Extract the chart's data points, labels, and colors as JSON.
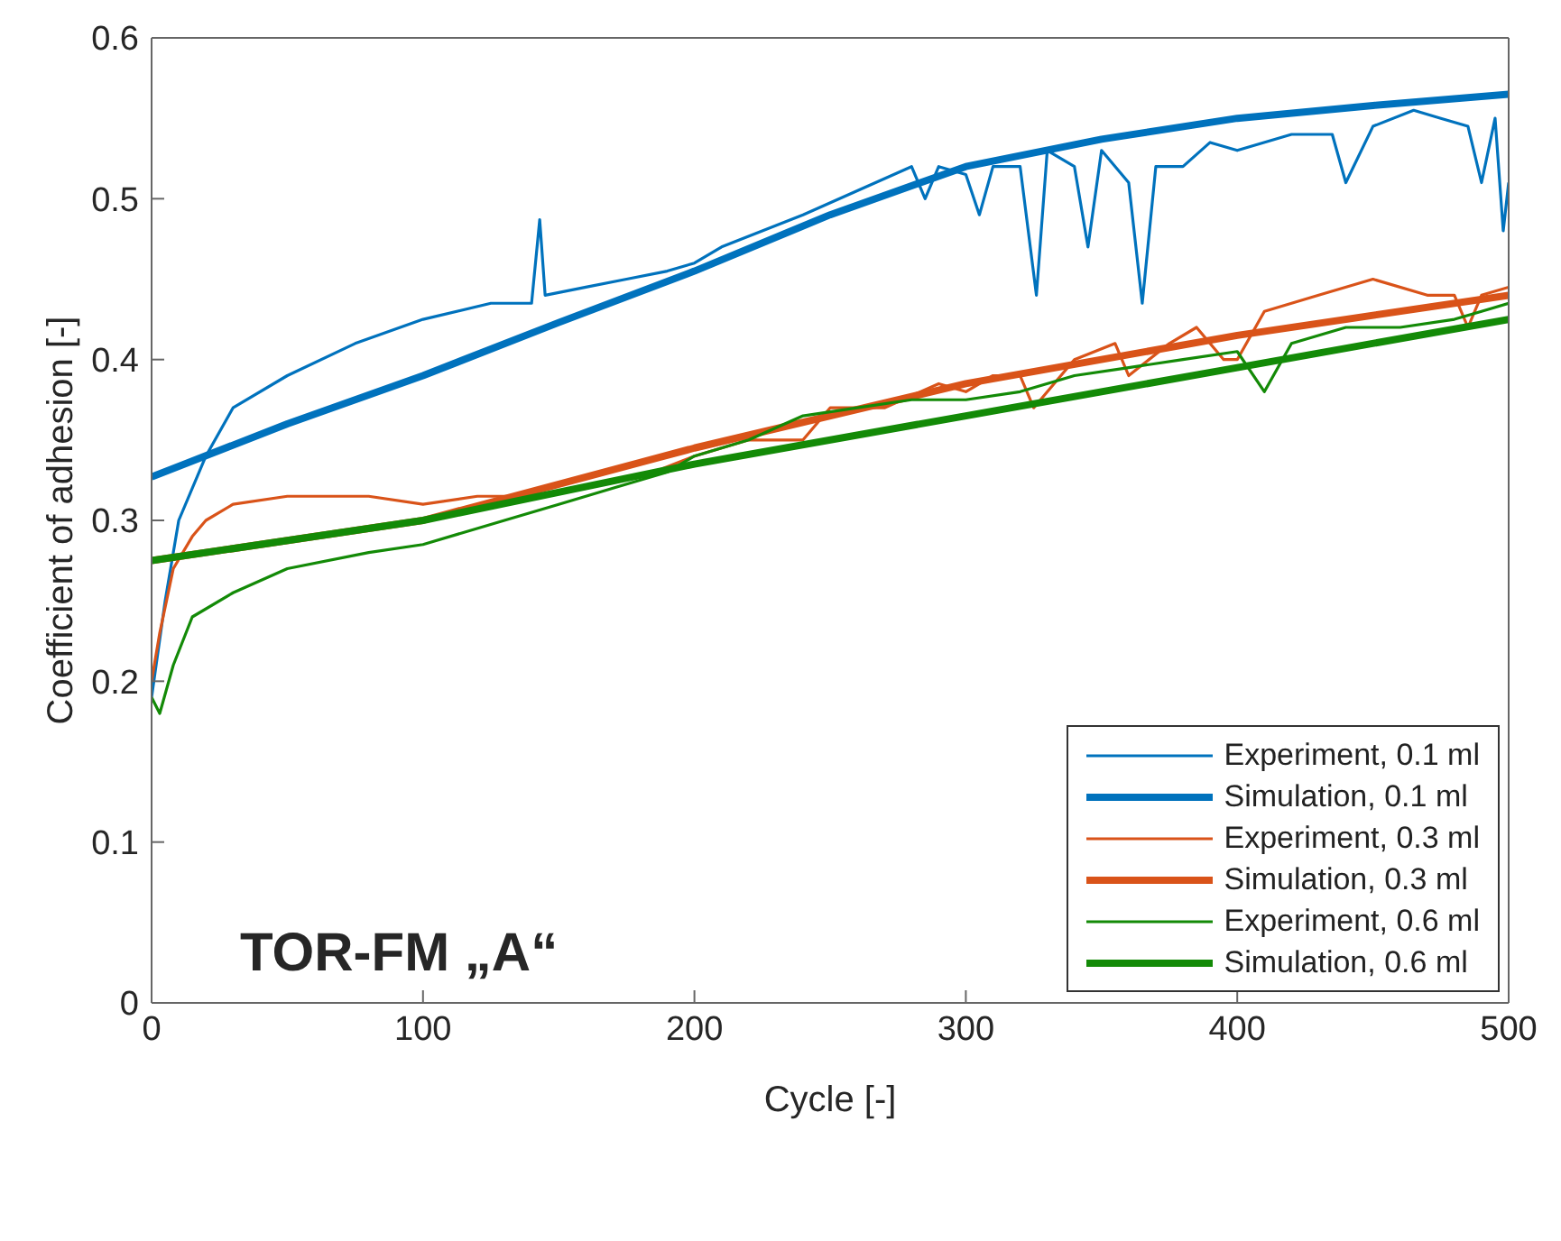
{
  "chart_data": {
    "type": "line",
    "xlabel": "Cycle [-]",
    "ylabel": "Coefficient of adhesion [-]",
    "xlim": [
      0,
      500
    ],
    "xticks": [
      0,
      100,
      200,
      300,
      400,
      500
    ],
    "ylim": [
      0,
      0.6
    ],
    "yticks": [
      0,
      0.1,
      0.2,
      0.3,
      0.4,
      0.5,
      0.6
    ],
    "legend": "bottom right",
    "marker": "none",
    "annotations": [
      "TOR-FM „A“"
    ],
    "series": [
      {
        "name": "Experiment, 0.1 ml",
        "color": "#0072bd",
        "x": [
          0,
          5,
          10,
          20,
          30,
          50,
          75,
          100,
          125,
          140,
          143,
          145,
          160,
          175,
          190,
          200,
          210,
          225,
          240,
          260,
          280,
          285,
          290,
          300,
          305,
          310,
          320,
          326,
          330,
          340,
          345,
          350,
          360,
          365,
          370,
          380,
          390,
          400,
          420,
          435,
          440,
          450,
          465,
          475,
          485,
          490,
          495,
          498,
          500
        ],
        "values": [
          0.19,
          0.25,
          0.3,
          0.34,
          0.37,
          0.39,
          0.41,
          0.425,
          0.435,
          0.435,
          0.487,
          0.44,
          0.445,
          0.45,
          0.455,
          0.46,
          0.47,
          0.48,
          0.49,
          0.505,
          0.52,
          0.5,
          0.52,
          0.515,
          0.49,
          0.52,
          0.52,
          0.44,
          0.53,
          0.52,
          0.47,
          0.53,
          0.51,
          0.435,
          0.52,
          0.52,
          0.535,
          0.53,
          0.54,
          0.54,
          0.51,
          0.545,
          0.555,
          0.55,
          0.545,
          0.51,
          0.55,
          0.48,
          0.51
        ]
      },
      {
        "name": "Simulation, 0.1 ml",
        "color": "#0072bd",
        "x": [
          0,
          50,
          100,
          150,
          200,
          250,
          300,
          350,
          400,
          450,
          500
        ],
        "values": [
          0.327,
          0.36,
          0.39,
          0.423,
          0.455,
          0.49,
          0.52,
          0.537,
          0.55,
          0.558,
          0.565
        ]
      },
      {
        "name": "Experiment, 0.3 ml",
        "color": "#d95319",
        "x": [
          0,
          3,
          8,
          15,
          20,
          30,
          50,
          80,
          100,
          120,
          140,
          160,
          185,
          200,
          220,
          240,
          250,
          270,
          290,
          300,
          310,
          320,
          325,
          340,
          355,
          360,
          375,
          385,
          395,
          400,
          410,
          430,
          450,
          470,
          480,
          485,
          490,
          500
        ],
        "values": [
          0.2,
          0.23,
          0.27,
          0.29,
          0.3,
          0.31,
          0.315,
          0.315,
          0.31,
          0.315,
          0.315,
          0.32,
          0.33,
          0.34,
          0.35,
          0.35,
          0.37,
          0.37,
          0.385,
          0.38,
          0.39,
          0.39,
          0.37,
          0.4,
          0.41,
          0.39,
          0.41,
          0.42,
          0.4,
          0.4,
          0.43,
          0.44,
          0.45,
          0.44,
          0.44,
          0.42,
          0.44,
          0.445
        ]
      },
      {
        "name": "Simulation, 0.3 ml",
        "color": "#d95319",
        "x": [
          0,
          100,
          200,
          300,
          400,
          500
        ],
        "values": [
          0.275,
          0.3,
          0.345,
          0.385,
          0.415,
          0.44
        ]
      },
      {
        "name": "Experiment, 0.6 ml",
        "color": "#138a07",
        "x": [
          0,
          3,
          8,
          15,
          30,
          50,
          80,
          100,
          130,
          150,
          170,
          190,
          200,
          220,
          240,
          260,
          280,
          300,
          320,
          340,
          360,
          380,
          400,
          410,
          420,
          440,
          460,
          480,
          490,
          500
        ],
        "values": [
          0.19,
          0.18,
          0.21,
          0.24,
          0.255,
          0.27,
          0.28,
          0.285,
          0.3,
          0.31,
          0.32,
          0.33,
          0.34,
          0.35,
          0.365,
          0.37,
          0.375,
          0.375,
          0.38,
          0.39,
          0.395,
          0.4,
          0.405,
          0.38,
          0.41,
          0.42,
          0.42,
          0.425,
          0.43,
          0.435
        ]
      },
      {
        "name": "Simulation, 0.6 ml",
        "color": "#138a07",
        "x": [
          0,
          100,
          200,
          300,
          400,
          500
        ],
        "values": [
          0.275,
          0.3,
          0.335,
          0.365,
          0.395,
          0.425
        ]
      }
    ]
  }
}
